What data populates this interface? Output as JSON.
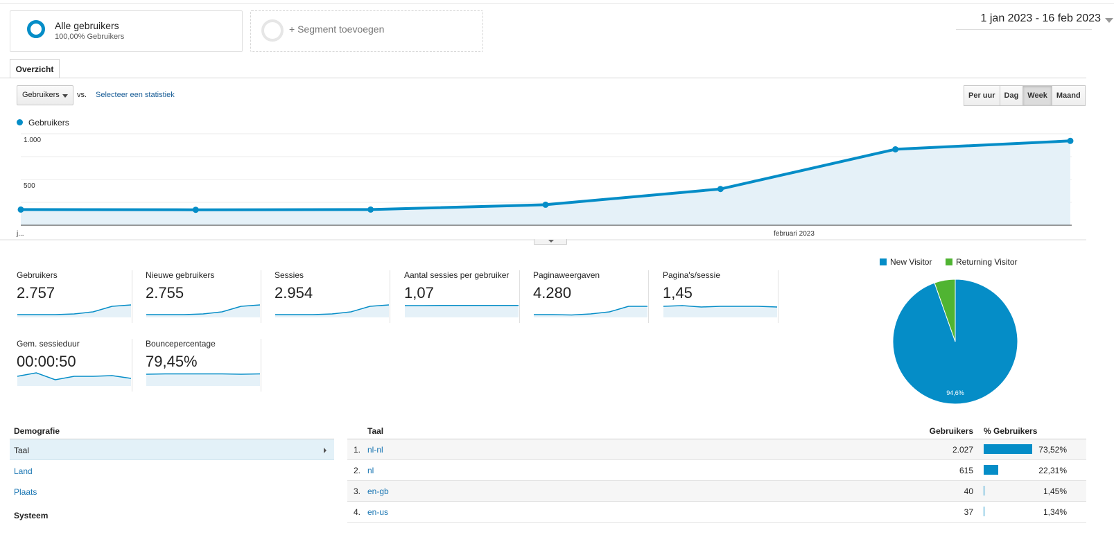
{
  "segments": {
    "all_title": "Alle gebruikers",
    "all_subtitle": "100,00% Gebruikers",
    "add_label": "+ Segment toevoegen"
  },
  "date_range": "1 jan 2023 - 16 feb 2023",
  "tabs": [
    "Overzicht"
  ],
  "controls": {
    "metric_select": "Gebruikers",
    "vs_label": "vs.",
    "select_stat_link": "Selecteer een statistiek",
    "granularity": [
      "Per uur",
      "Dag",
      "Week",
      "Maand"
    ],
    "granularity_selected": "Week"
  },
  "chart_data": [
    {
      "type": "area",
      "series": [
        {
          "name": "Gebruikers",
          "values": [
            171,
            169,
            171,
            224,
            396,
            830,
            922
          ]
        }
      ],
      "ytick_labels": [
        "1.000",
        "500"
      ],
      "yticks": [
        1000,
        500
      ],
      "xtick_labels": [
        "j...",
        "februari 2023"
      ],
      "ylim": [
        0,
        1000
      ],
      "grid": true,
      "color": "#058dc7"
    },
    {
      "type": "pie",
      "series": [
        {
          "name": "New Visitor",
          "values": [
            94.6
          ],
          "color": "#058dc7"
        },
        {
          "name": "Returning Visitor",
          "values": [
            5.4
          ],
          "color": "#50b432"
        }
      ],
      "data_labels": [
        "94,6%"
      ],
      "legend_position": "top"
    }
  ],
  "scorecards": [
    {
      "label": "Gebruikers",
      "value": "2.757",
      "spark": [
        2,
        2,
        2,
        3,
        6,
        14,
        16
      ]
    },
    {
      "label": "Nieuwe gebruikers",
      "value": "2.755",
      "spark": [
        2,
        2,
        2,
        3,
        6,
        14,
        16
      ]
    },
    {
      "label": "Sessies",
      "value": "2.954",
      "spark": [
        2,
        2,
        2,
        3,
        6,
        14,
        16
      ]
    },
    {
      "label": "Aantal sessies per gebruiker",
      "value": "1,07",
      "spark": [
        15,
        15,
        15.3,
        15.2,
        15.2,
        15.3,
        15.3
      ]
    },
    {
      "label": "Paginaweergaven",
      "value": "4.280",
      "spark": [
        2,
        2,
        1.5,
        3,
        6,
        14,
        14
      ]
    },
    {
      "label": "Pagina's/sessie",
      "value": "1,45",
      "spark": [
        14,
        15,
        13,
        14,
        14,
        14,
        13
      ]
    },
    {
      "label": "Gem. sessieduur",
      "value": "00:00:50",
      "spark": [
        12,
        17,
        7,
        12,
        12,
        13,
        9
      ]
    },
    {
      "label": "Bouncepercentage",
      "value": "79,45%",
      "spark": [
        15,
        15.5,
        15.5,
        15.5,
        15.5,
        15,
        15.5
      ]
    }
  ],
  "demographics": {
    "heading": "Demografie",
    "items": [
      "Taal",
      "Land",
      "Plaats"
    ],
    "active": "Taal",
    "system_heading": "Systeem"
  },
  "table": {
    "col_dimension": "Taal",
    "col_users": "Gebruikers",
    "col_pct": "% Gebruikers",
    "rows": [
      {
        "index": "1.",
        "name": "nl-nl",
        "users": "2.027",
        "pct": "73,52%",
        "share": 0.7352
      },
      {
        "index": "2.",
        "name": "nl",
        "users": "615",
        "pct": "22,31%",
        "share": 0.2231
      },
      {
        "index": "3.",
        "name": "en-gb",
        "users": "40",
        "pct": "1,45%",
        "share": 0.0145
      },
      {
        "index": "4.",
        "name": "en-us",
        "users": "37",
        "pct": "1,34%",
        "share": 0.0134
      }
    ]
  }
}
